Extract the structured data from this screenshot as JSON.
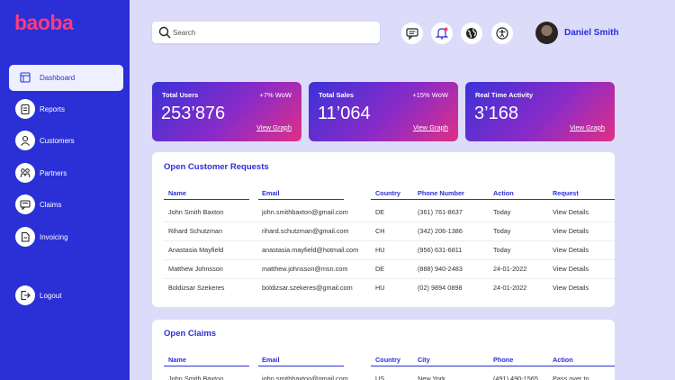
{
  "sidebar": {
    "logo": "baoba",
    "nav": [
      "Dashboard",
      "Reports",
      "Customers",
      "Partners",
      "Claims",
      "Invoicing"
    ],
    "logout": "Logout"
  },
  "header": {
    "search_placeholder": "Search",
    "user_name": "Daniel Smith"
  },
  "stats": [
    {
      "label": "Total Users",
      "change": "+7% WoW",
      "value": "253’876",
      "link": "View Graph"
    },
    {
      "label": "Total Sales",
      "change": "+15% WoW",
      "value": "11’064",
      "link": "View Graph"
    },
    {
      "label": "Real Time Activity",
      "value": "3’168",
      "link": "View Graph"
    }
  ],
  "requests": {
    "title": "Open Customer Requests",
    "columns": [
      "Name",
      "Email",
      "Country",
      "Phone Number",
      "Action",
      "Request"
    ],
    "rows": [
      [
        "John Smith Baxton",
        "john.smithbaxton@gmail.com",
        "DE",
        "(361) 761-8637",
        "Today",
        "View Details"
      ],
      [
        "Rihard Schutzman",
        "rihard.schutzman@gmail.com",
        "CH",
        "(342) 206-1386",
        "Today",
        "View Details"
      ],
      [
        "Anastasia Mayfield",
        "anastasia.mayfield@hotmail.com",
        "HU",
        "(956) 631-6811",
        "Today",
        "View Details"
      ],
      [
        "Matthew Johnsson",
        "matthew.johnsson@msn.com",
        "DE",
        "(888) 940-2483",
        "24-01-2022",
        "View Details"
      ],
      [
        "Boldizsar Szekeres",
        "boldizsar.szekeres@gmail.com",
        "HU",
        "(02) 9894 0898",
        "24-01-2022",
        "View Details"
      ]
    ]
  },
  "claims": {
    "title": "Open Claims",
    "columns": [
      "Name",
      "Email",
      "Country",
      "City",
      "Phone",
      "Action"
    ],
    "rows": [
      [
        "John Smith Baxton",
        "john.smithbaxton@gmail.com",
        "US",
        "New York",
        "(491) 490-1565",
        "Pass over to"
      ]
    ]
  }
}
